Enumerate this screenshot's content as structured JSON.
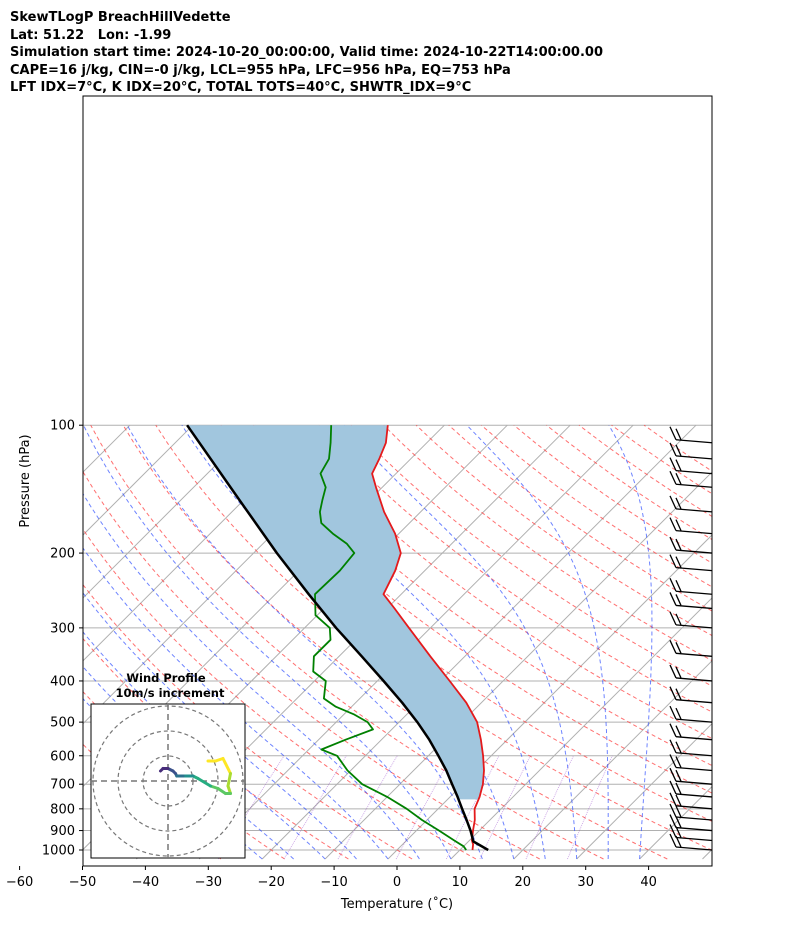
{
  "header": {
    "line1": "SkewTLogP BreachHillVedette",
    "line2": "Lat: 51.22   Lon: -1.99",
    "line3": "Simulation start time: 2024-10-20_00:00:00, Valid time: 2024-10-22T14:00:00.00",
    "line4": "CAPE=16 j/kg, CIN=-0 j/kg, LCL=955 hPa, LFC=956 hPa, EQ=753 hPa",
    "line5": "LFT IDX=7°C, K IDX=20°C, TOTAL TOTS=40°C, SHWTR_IDX=9°C"
  },
  "chart_data": {
    "type": "skew-t",
    "xlabel": "Temperature (˚C)",
    "ylabel": "Pressure (hPa)",
    "xlim": [
      -60,
      40
    ],
    "ylim": [
      1050,
      100
    ],
    "x_ticks": [
      "−60",
      "−50",
      "−40",
      "−30",
      "−20",
      "−10",
      "0",
      "10",
      "20",
      "30",
      "40"
    ],
    "x_tick_values": [
      -60,
      -50,
      -40,
      -30,
      -20,
      -10,
      0,
      10,
      20,
      30,
      40
    ],
    "y_ticks": [
      "1000",
      "900",
      "800",
      "700",
      "600",
      "500",
      "400",
      "300",
      "200",
      "100"
    ],
    "y_tick_values": [
      1000,
      900,
      800,
      700,
      600,
      500,
      400,
      300,
      200,
      100
    ],
    "y_scale": "log",
    "grid": true,
    "series": [
      {
        "role": "temperature",
        "color": "#e41a1c",
        "p": [
          1000,
          970,
          950,
          900,
          850,
          800,
          750,
          700,
          650,
          600,
          550,
          500,
          450,
          400,
          350,
          300,
          270,
          250,
          220,
          200,
          180,
          160,
          140,
          130,
          120,
          110,
          100
        ],
        "t": [
          12.0,
          11.2,
          10.4,
          9.0,
          7.6,
          5.8,
          4.7,
          3.2,
          1.2,
          -1.3,
          -4.2,
          -7.6,
          -12.4,
          -18.5,
          -25.5,
          -33.4,
          -38.8,
          -42.8,
          -44.7,
          -46.6,
          -50.6,
          -55.8,
          -61.0,
          -63.8,
          -65.0,
          -66.5,
          -69.0
        ]
      },
      {
        "role": "dewpoint",
        "color": "#008000",
        "p": [
          1000,
          980,
          950,
          900,
          850,
          800,
          750,
          700,
          650,
          600,
          580,
          550,
          520,
          500,
          480,
          460,
          440,
          400,
          380,
          350,
          320,
          300,
          280,
          250,
          220,
          200,
          190,
          180,
          170,
          160,
          150,
          140,
          130,
          120,
          110,
          100
        ],
        "t": [
          11.0,
          10.0,
          7.6,
          3.6,
          -0.8,
          -5.0,
          -10.0,
          -16.0,
          -20.5,
          -24.5,
          -28.0,
          -25.7,
          -23.0,
          -25.0,
          -28.3,
          -32.5,
          -35.7,
          -38.2,
          -41.7,
          -44.0,
          -44.0,
          -46.0,
          -50.3,
          -53.7,
          -53.5,
          -54.0,
          -56.7,
          -60.5,
          -64.0,
          -66.0,
          -67.5,
          -69.0,
          -72.0,
          -73.0,
          -75.3,
          -78.0
        ]
      },
      {
        "role": "parcel",
        "color": "#000000",
        "p": [
          1000,
          955,
          900,
          850,
          800,
          750,
          700,
          650,
          600,
          550,
          500,
          450,
          400,
          350,
          300,
          250,
          200,
          150,
          100
        ],
        "t": [
          14.5,
          10.8,
          8.6,
          6.3,
          3.8,
          1.2,
          -1.7,
          -4.8,
          -8.4,
          -12.4,
          -17.1,
          -22.6,
          -29.0,
          -36.4,
          -45.0,
          -54.7,
          -66.3,
          -80.7,
          -100.9
        ]
      }
    ],
    "cape_fill_color": "#a1c6de",
    "wind_barbs_p": [
      1000,
      950,
      900,
      850,
      800,
      750,
      700,
      650,
      600,
      550,
      500,
      450,
      400,
      350,
      300,
      270,
      250,
      220,
      200,
      180,
      160,
      140,
      130,
      120,
      110
    ],
    "inset": {
      "title": "Wind Profile",
      "subtitle": "10m/s increment",
      "rings": 3,
      "hodograph": [
        [
          1.6,
          0.8
        ],
        [
          1.9,
          0.8
        ],
        [
          2.2,
          0.9
        ],
        [
          2.5,
          0.3
        ],
        [
          2.4,
          -0.2
        ],
        [
          2.5,
          -0.5
        ],
        [
          2.3,
          -0.5
        ],
        [
          2.0,
          -0.3
        ],
        [
          1.7,
          -0.2
        ],
        [
          1.2,
          0.1
        ],
        [
          1.0,
          0.2
        ],
        [
          0.8,
          0.2
        ],
        [
          0.6,
          0.2
        ],
        [
          0.5,
          0.2
        ],
        [
          0.35,
          0.2
        ],
        [
          0.3,
          0.3
        ],
        [
          0.2,
          0.4
        ],
        [
          0.0,
          0.5
        ],
        [
          -0.2,
          0.5
        ],
        [
          -0.3,
          0.4
        ]
      ]
    }
  }
}
